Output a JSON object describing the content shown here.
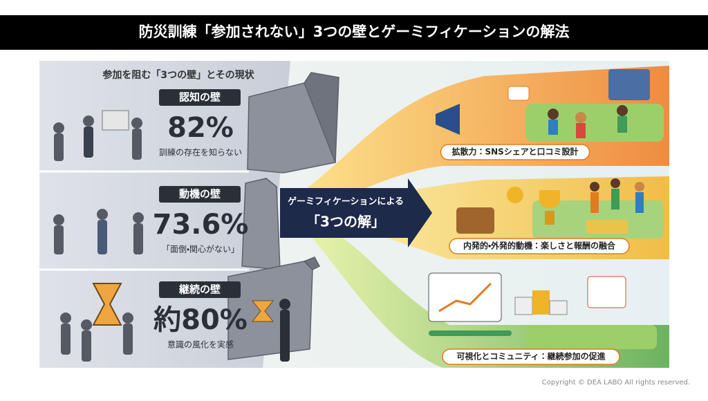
{
  "header": {
    "title": "防災訓練「参加されない」3つの壁とゲーミフィケーションの解法"
  },
  "left": {
    "heading": "参加を阻む「3つの壁」とその現状",
    "walls": [
      {
        "label": "認知の壁",
        "stat": "82%",
        "caption": "訓練の存在を知らない"
      },
      {
        "label": "動機の壁",
        "stat": "73.6%",
        "caption": "「面倒・関心がない」"
      },
      {
        "label": "継続の壁",
        "stat": "約80%",
        "caption": "意識の風化を実感"
      }
    ]
  },
  "center": {
    "line1": "ゲーミフィケーションによる",
    "line2": "「3つの解」"
  },
  "solutions": [
    "拡散力：SNSシェアと口コミ設計",
    "内発的・外発的動機：楽しさと報酬の融合",
    "可視化とコミュニティ：継続参加の促進"
  ],
  "footer": {
    "copyright": "Copyright © DEA LABO All rights reserved."
  }
}
